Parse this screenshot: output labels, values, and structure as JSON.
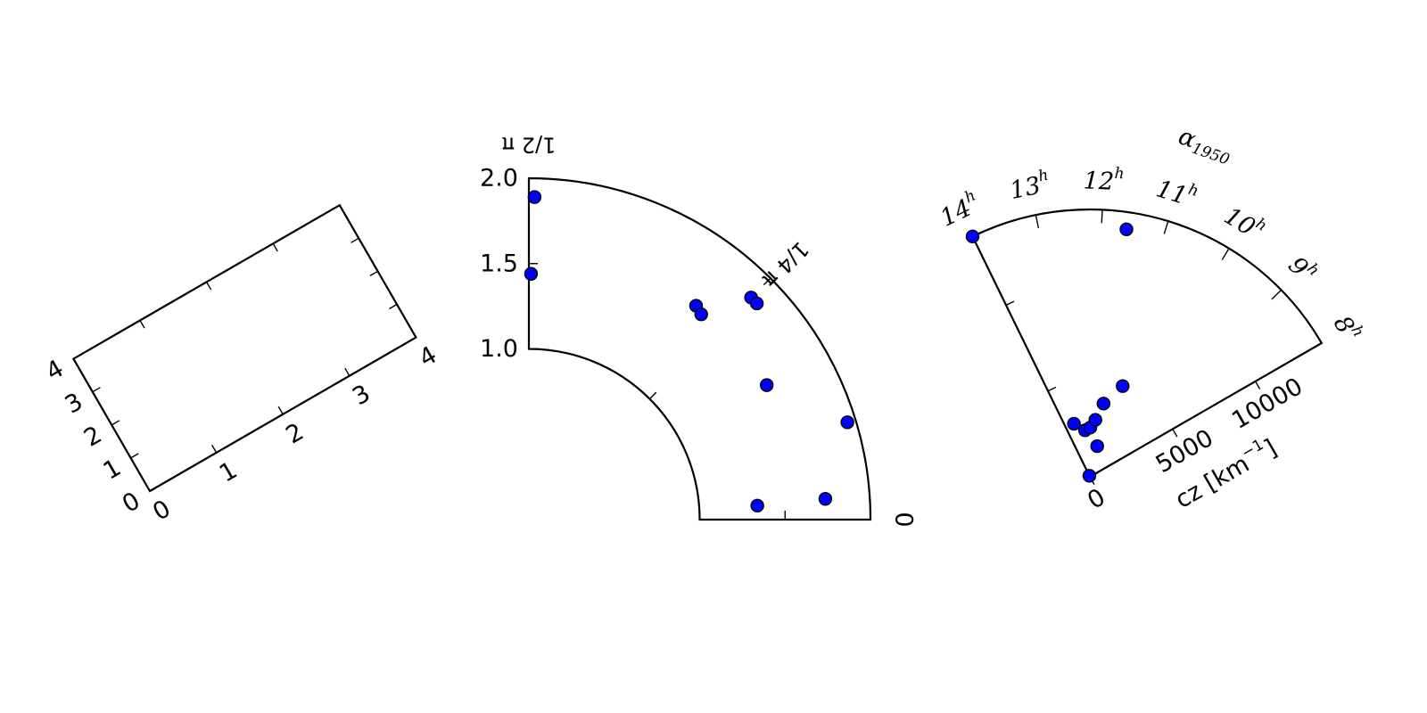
{
  "chart_data": [
    {
      "type": "scatter",
      "xlim": [
        0,
        4
      ],
      "ylim": [
        0,
        4
      ],
      "x_ticks": [
        "0",
        "1",
        "2",
        "3",
        "4"
      ],
      "y_ticks": [
        "0",
        "1",
        "2",
        "3",
        "4"
      ],
      "rotation_deg": -30,
      "points": []
    },
    {
      "type": "scatter",
      "projection": "polar",
      "theta_range": [
        "0",
        "π/2"
      ],
      "r_range": [
        1.0,
        2.0
      ],
      "theta_ticks": [
        "0",
        "1/4 π",
        "1/2 π"
      ],
      "r_ticks": [
        "1.0",
        "1.5",
        "2.0"
      ],
      "points": [
        {
          "theta_deg": 89.0,
          "r": 1.89
        },
        {
          "theta_deg": 89.5,
          "r": 1.44
        },
        {
          "theta_deg": 45.0,
          "r": 1.84
        },
        {
          "theta_deg": 43.5,
          "r": 1.84
        },
        {
          "theta_deg": 52.0,
          "r": 1.59
        },
        {
          "theta_deg": 50.0,
          "r": 1.57
        },
        {
          "theta_deg": 29.5,
          "r": 1.6
        },
        {
          "theta_deg": 17.0,
          "r": 1.95
        },
        {
          "theta_deg": 4.0,
          "r": 1.74
        },
        {
          "theta_deg": 3.5,
          "r": 1.34
        }
      ]
    },
    {
      "type": "scatter",
      "projection": "curvilinear",
      "theta_label": "α1950",
      "theta_ticks": [
        "14h",
        "13h",
        "12h",
        "11h",
        "10h",
        "9h",
        "8h"
      ],
      "r_label": "cz [km−1]",
      "r_ticks": [
        "0",
        "5000",
        "10000"
      ],
      "r_range": [
        0,
        14000
      ],
      "ra_range_hours": [
        8,
        14
      ],
      "points": [
        {
          "ra_h": 14.0,
          "cz": 14000
        },
        {
          "ra_h": 11.6,
          "cz": 13100
        },
        {
          "ra_h": 13.35,
          "cz": 2900
        },
        {
          "ra_h": 12.6,
          "cz": 2450
        },
        {
          "ra_h": 12.15,
          "cz": 2580
        },
        {
          "ra_h": 11.45,
          "cz": 3900
        },
        {
          "ra_h": 10.8,
          "cz": 5050
        },
        {
          "ra_h": 11.8,
          "cz": 3000
        },
        {
          "ra_h": 11.25,
          "cz": 1650
        },
        {
          "ra_h": 14.0,
          "cz": 60
        }
      ]
    }
  ]
}
